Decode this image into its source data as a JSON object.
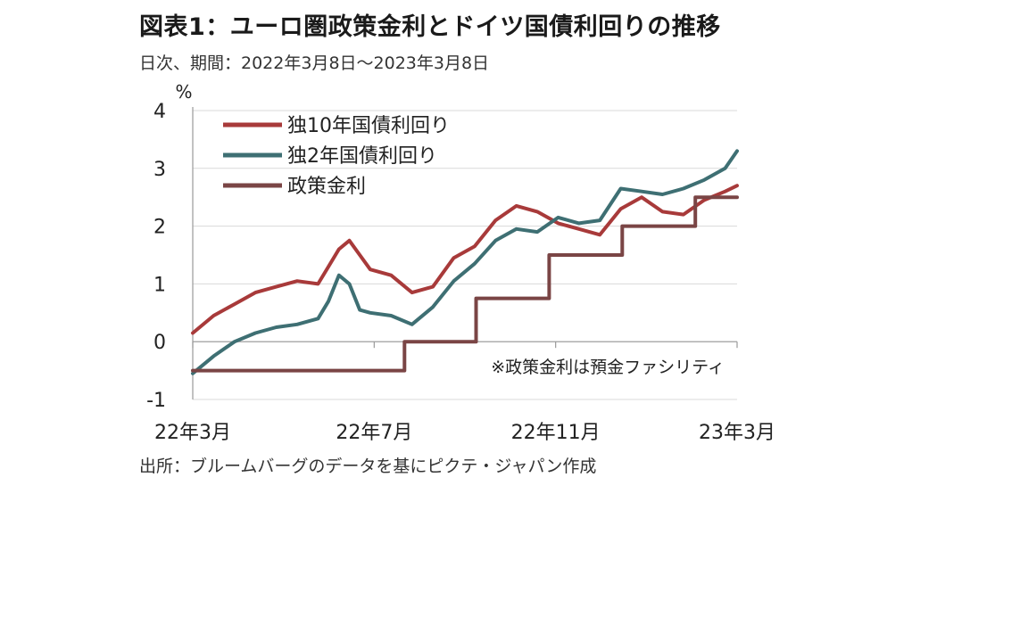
{
  "title": "図表1：ユーロ圏政策金利とドイツ国債利回りの推移",
  "subtitle": "日次、期間：2022年3月8日～2023年3月8日",
  "source": "出所：ブルームバーグのデータを基にピクテ・ジャパン作成",
  "chart_data": {
    "type": "line",
    "unit_label": "%",
    "note": "※政策金利は預金ファシリティ",
    "ylim": [
      -1,
      4
    ],
    "y_ticks": [
      4,
      3,
      2,
      1,
      0,
      -1
    ],
    "x_ticks": [
      "22年3月",
      "22年7月",
      "22年11月",
      "23年3月"
    ],
    "grid": true,
    "legend_position": "top-left",
    "series": [
      {
        "name": "独10年国債利回り",
        "color": "#a83a3a",
        "x": [
          "2022-03-08",
          "2022-03-22",
          "2022-04-05",
          "2022-04-19",
          "2022-05-03",
          "2022-05-17",
          "2022-05-31",
          "2022-06-07",
          "2022-06-14",
          "2022-06-21",
          "2022-06-28",
          "2022-07-05",
          "2022-07-19",
          "2022-08-02",
          "2022-08-16",
          "2022-08-30",
          "2022-09-13",
          "2022-09-27",
          "2022-10-11",
          "2022-10-25",
          "2022-11-08",
          "2022-11-22",
          "2022-12-06",
          "2022-12-20",
          "2023-01-03",
          "2023-01-17",
          "2023-01-31",
          "2023-02-14",
          "2023-02-28",
          "2023-03-08"
        ],
        "values": [
          0.15,
          0.45,
          0.65,
          0.85,
          0.95,
          1.05,
          1.0,
          1.3,
          1.6,
          1.75,
          1.5,
          1.25,
          1.15,
          0.85,
          0.95,
          1.45,
          1.65,
          2.1,
          2.35,
          2.25,
          2.05,
          1.95,
          1.85,
          2.3,
          2.5,
          2.25,
          2.2,
          2.45,
          2.6,
          2.7
        ]
      },
      {
        "name": "独2年国債利回り",
        "color": "#3e6f73",
        "x": [
          "2022-03-08",
          "2022-03-22",
          "2022-04-05",
          "2022-04-19",
          "2022-05-03",
          "2022-05-17",
          "2022-05-31",
          "2022-06-07",
          "2022-06-14",
          "2022-06-21",
          "2022-06-28",
          "2022-07-05",
          "2022-07-19",
          "2022-08-02",
          "2022-08-16",
          "2022-08-30",
          "2022-09-13",
          "2022-09-27",
          "2022-10-11",
          "2022-10-25",
          "2022-11-08",
          "2022-11-22",
          "2022-12-06",
          "2022-12-20",
          "2023-01-03",
          "2023-01-17",
          "2023-01-31",
          "2023-02-14",
          "2023-02-28",
          "2023-03-08"
        ],
        "values": [
          -0.55,
          -0.25,
          0.0,
          0.15,
          0.25,
          0.3,
          0.4,
          0.7,
          1.15,
          1.0,
          0.55,
          0.5,
          0.45,
          0.3,
          0.6,
          1.05,
          1.35,
          1.75,
          1.95,
          1.9,
          2.15,
          2.05,
          2.1,
          2.65,
          2.6,
          2.55,
          2.65,
          2.8,
          3.0,
          3.3
        ]
      },
      {
        "name": "政策金利",
        "color": "#7a4545",
        "x": [
          "2022-03-08",
          "2022-07-27",
          "2022-07-28",
          "2022-09-13",
          "2022-09-14",
          "2022-11-01",
          "2022-11-02",
          "2022-12-20",
          "2022-12-21",
          "2023-02-07",
          "2023-02-08",
          "2023-03-08"
        ],
        "values": [
          -0.5,
          -0.5,
          0.0,
          0.0,
          0.75,
          0.75,
          1.5,
          1.5,
          2.0,
          2.0,
          2.5,
          2.5
        ]
      }
    ]
  }
}
